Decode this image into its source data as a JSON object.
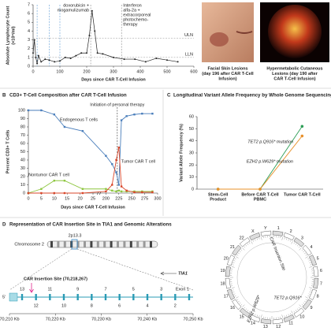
{
  "chart_data": [
    {
      "type": "line",
      "y_label": [
        "Absolute Lymphocyte Count",
        "(×10⁹/ml)"
      ],
      "x_label": "Days since CAR T-Cell Infusion",
      "x": [
        0,
        5,
        10,
        15,
        20,
        30,
        45,
        60,
        80,
        100,
        120,
        140,
        160,
        180,
        200,
        210,
        220,
        230,
        240,
        260,
        300,
        340,
        380,
        420,
        460,
        500,
        540
      ],
      "values": [
        1.5,
        3.0,
        1.0,
        0.3,
        1.2,
        0.5,
        0.8,
        0.7,
        0.5,
        0.6,
        1.0,
        0.9,
        1.2,
        1.5,
        1.5,
        3.5,
        6.3,
        4.0,
        1.5,
        1.4,
        1.0,
        0.8,
        0.8,
        0.5,
        0.9,
        0.7,
        0.5
      ],
      "color": "#222222",
      "xlim": [
        0,
        600
      ],
      "xticks": [
        0,
        100,
        200,
        300,
        400,
        500,
        600
      ],
      "ylim": [
        0,
        7
      ],
      "yticks": [
        0,
        1,
        2,
        3,
        4,
        5,
        6,
        7
      ],
      "reference_lines": [
        {
          "label": "ULN",
          "value": 3.2
        },
        {
          "label": "LLN",
          "value": 1.0
        }
      ],
      "markers": [
        {
          "x": 15,
          "color": "#5b9bd5"
        },
        {
          "x": 60,
          "color": "#5b9bd5"
        },
        {
          "x": 100,
          "color": "#5b9bd5"
        }
      ],
      "therapy_markers": [
        {
          "x": 215,
          "label": [
            "doxorubicin +",
            "mogamulizumab"
          ]
        },
        {
          "x": 330,
          "label": [
            "Interferon",
            "alfa-2a +",
            "extracorporeal",
            "photochemo-",
            "therapy"
          ]
        }
      ]
    },
    {
      "type": "line",
      "panel": "B",
      "title": "CD3+ T-Cell Composition after CAR T-Cell Infusion",
      "y_label": "Percent CD3+ T Cells",
      "x_label": "Days since CAR T-Cell Infusion",
      "x": [
        0,
        5,
        10,
        14,
        21,
        200,
        212,
        220,
        225,
        230,
        240,
        255,
        270,
        290
      ],
      "series": [
        {
          "name": "Endogenous T cells",
          "color": "#4a7ebb",
          "values": [
            100,
            100,
            95,
            80,
            75,
            45,
            35,
            25,
            10,
            88,
            93,
            95,
            96,
            96
          ]
        },
        {
          "name": "Nontumor CAR T cell",
          "color": "#8dc63f",
          "values": [
            0,
            5,
            15,
            15,
            5,
            5,
            3,
            2,
            3,
            2,
            2,
            2,
            2,
            2
          ]
        },
        {
          "name": "Tumor CAR T cell",
          "color": "#d9472b",
          "values": [
            0,
            0,
            0,
            0,
            0,
            2,
            10,
            40,
            55,
            8,
            3,
            1,
            1,
            1
          ]
        }
      ],
      "xlim": [
        0,
        300
      ],
      "xticks": [
        0,
        5,
        10,
        15,
        20,
        25,
        200,
        225,
        250,
        275,
        300
      ],
      "ylim": [
        0,
        100
      ],
      "yticks": [
        0,
        10,
        20,
        30,
        40,
        50,
        60,
        70,
        80,
        90,
        100
      ],
      "annotation": {
        "x": 222,
        "label": "Initiation of personal therapy"
      }
    },
    {
      "type": "line",
      "panel": "C",
      "title": "Longitudinal Variant Allele Frequency by Whole Genome Sequencing",
      "y_label": "Variant Allele Frequency (%)",
      "categories": [
        [
          "Stem-Cell",
          "Product"
        ],
        [
          "Before CAR T-Cell",
          "PBMC"
        ],
        [
          "Tumor CAR T-Cell"
        ]
      ],
      "series": [
        {
          "name": "TET2 p.Q916* mutation",
          "color": "#2e9e57",
          "values": [
            0,
            0,
            52
          ]
        },
        {
          "name": "EZH2 p.W629* mutation",
          "color": "#e8902a",
          "values": [
            0,
            0,
            44
          ]
        }
      ],
      "ylim": [
        0,
        60
      ],
      "yticks": [
        0,
        10,
        20,
        30,
        40,
        50,
        60
      ]
    }
  ],
  "photos": [
    {
      "caption": [
        "Facial Skin Lesions",
        "(day 196 after CAR T-Cell",
        "Infusion)"
      ]
    },
    {
      "caption": [
        "Hypermetabolic Cutaneous",
        "Lesions (day 190 after",
        "CAR T-Cell Infusion)"
      ]
    }
  ],
  "panel_d": {
    "panel": "D",
    "title": "Representation of CAR Insertion Site in TIA1 and Genomic Alterations",
    "chromosome": "Chromosome 2",
    "band": "2p13.3",
    "insertion_label": "CAR Insertion Site (70,218,267)",
    "gene": "TIA1",
    "five_prime": "5'",
    "exons": [
      "13",
      "12",
      "11",
      "10",
      "9",
      "8",
      "7",
      "6",
      "5",
      "4",
      "3",
      "2",
      "Exon 1"
    ],
    "genomic_ticks": [
      "70,210 Kb",
      "70,220 Kb",
      "70,230 Kb",
      "70,240 Kb",
      "70,250 Kb"
    ],
    "circos": {
      "chromosomes": [
        "1",
        "2",
        "3",
        "4",
        "5",
        "6",
        "7",
        "8",
        "9",
        "10",
        "11",
        "12",
        "13",
        "14",
        "15",
        "16",
        "17",
        "18",
        "19",
        "20",
        "21",
        "22",
        "X",
        "Y"
      ],
      "labels": [
        {
          "text": "CAR Insertion Site",
          "color": "#e0218a"
        },
        {
          "text": "TET2 p.Q916*",
          "color": "#2e9e57"
        },
        {
          "text": "EZH2 p.W629*",
          "color": "#e8902a"
        }
      ]
    }
  }
}
